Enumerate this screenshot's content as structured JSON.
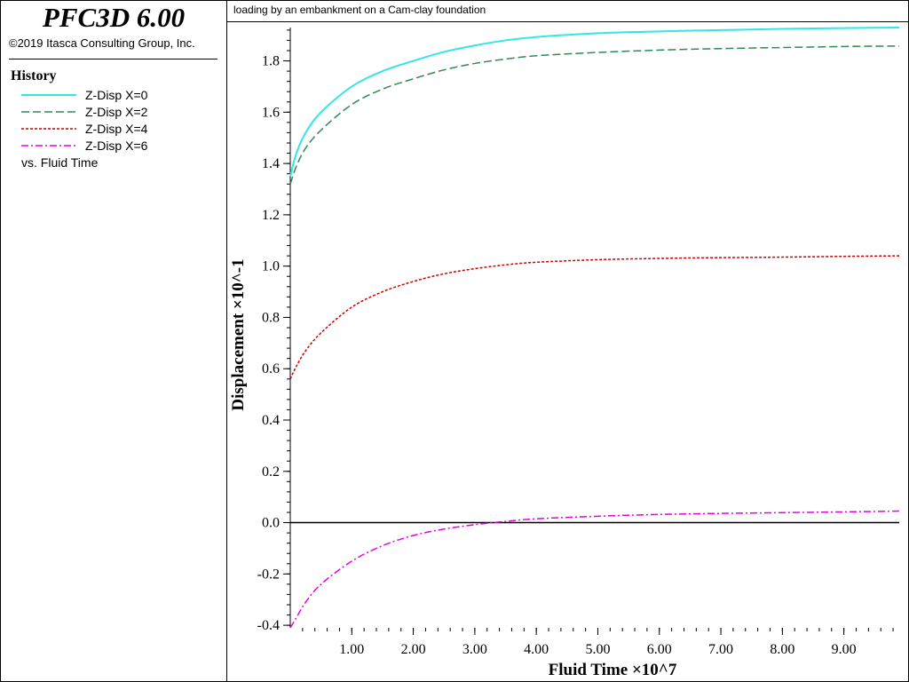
{
  "header": {
    "app_title": "PFC3D 6.00",
    "copyright": "©2019 Itasca Consulting Group, Inc."
  },
  "legend": {
    "title": "History",
    "items": [
      {
        "label": "Z-Disp X=0",
        "color": "#33e6e6",
        "dash": "solid"
      },
      {
        "label": "Z-Disp X=2",
        "color": "#2e8b57",
        "dash": "long-dash"
      },
      {
        "label": "Z-Disp X=4",
        "color": "#cc0000",
        "dash": "short-dash"
      },
      {
        "label": "Z-Disp X=6",
        "color": "#e600e6",
        "dash": "dash-dot"
      }
    ],
    "vs_label": "vs. Fluid Time"
  },
  "chart_data": {
    "type": "line",
    "title": "loading by an embankment on a Cam-clay foundation",
    "xlabel": "Fluid Time ×10^7",
    "ylabel": "Displacement ×10^-1",
    "xlim": [
      0,
      9.9
    ],
    "ylim": [
      -0.41,
      1.93
    ],
    "x_ticks": [
      1.0,
      2.0,
      3.0,
      4.0,
      5.0,
      6.0,
      7.0,
      8.0,
      9.0
    ],
    "x_tick_labels": [
      "1.00",
      "2.00",
      "3.00",
      "4.00",
      "5.00",
      "6.00",
      "7.00",
      "8.00",
      "9.00"
    ],
    "y_ticks": [
      -0.4,
      -0.2,
      0.0,
      0.2,
      0.4,
      0.6,
      0.8,
      1.0,
      1.2,
      1.4,
      1.6,
      1.8
    ],
    "y_tick_labels": [
      "-0.4",
      "-0.2",
      "0.0",
      "0.2",
      "0.4",
      "0.6",
      "0.8",
      "1.0",
      "1.2",
      "1.4",
      "1.6",
      "1.8"
    ],
    "grid": false,
    "zero_line": true,
    "x": [
      0,
      0.1,
      0.25,
      0.5,
      1.0,
      1.5,
      2.0,
      2.5,
      3.0,
      3.5,
      4.0,
      5.0,
      6.0,
      7.0,
      8.0,
      9.0,
      9.9
    ],
    "series": [
      {
        "name": "Z-Disp X=0",
        "values": [
          1.35,
          1.44,
          1.52,
          1.6,
          1.7,
          1.76,
          1.8,
          1.835,
          1.86,
          1.88,
          1.893,
          1.908,
          1.915,
          1.92,
          1.925,
          1.928,
          1.93
        ]
      },
      {
        "name": "Z-Disp X=2",
        "values": [
          1.32,
          1.39,
          1.46,
          1.53,
          1.63,
          1.69,
          1.73,
          1.765,
          1.79,
          1.807,
          1.82,
          1.833,
          1.842,
          1.848,
          1.852,
          1.856,
          1.858
        ]
      },
      {
        "name": "Z-Disp X=4",
        "values": [
          0.56,
          0.61,
          0.67,
          0.74,
          0.84,
          0.9,
          0.94,
          0.97,
          0.99,
          1.005,
          1.015,
          1.025,
          1.03,
          1.033,
          1.035,
          1.038,
          1.04
        ]
      },
      {
        "name": "Z-Disp X=6",
        "values": [
          -0.41,
          -0.37,
          -0.31,
          -0.24,
          -0.15,
          -0.09,
          -0.05,
          -0.025,
          -0.008,
          0.005,
          0.015,
          0.025,
          0.032,
          0.036,
          0.039,
          0.042,
          0.045
        ]
      }
    ]
  }
}
